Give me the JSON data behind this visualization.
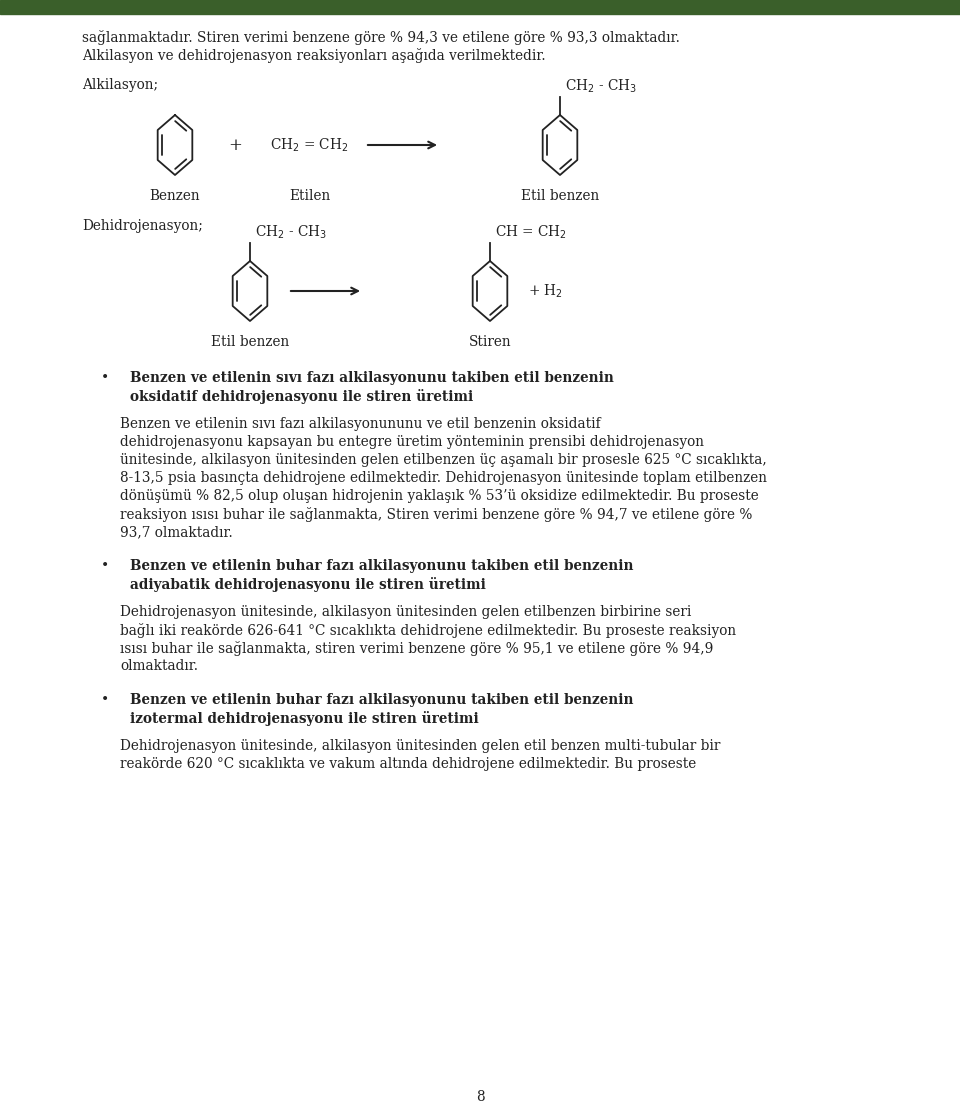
{
  "bg_color": "#ffffff",
  "page_number": "8",
  "text_color": "#222222",
  "green_bar_color": "#3a5f2a",
  "paragraph1": "sağlanmaktadır. Stiren verimi benzene göre % 94,3 ve etilene göre % 93,3 olmaktadır.",
  "paragraph1b": "Alkilasyon ve dehidrojenasyon reaksiyonları aşağıda verilmektedir.",
  "alkilasyon_label": "Alkilasyon;",
  "benzen_label": "Benzen",
  "etilen_label": "Etilen",
  "etilbenzen_label": "Etil benzen",
  "dehidro_label": "Dehidrojenasyon;",
  "etilbenzen2_label": "Etil benzen",
  "stiren_label": "Stiren",
  "plus_sign": "+",
  "bullet1_bold1": "Benzen ve etilenin sıvı fazı alkilasyonunu takiben etil benzenin",
  "bullet1_bold2": "oksidatif dehidrojenasyonu ile stiren üretimi",
  "bullet2_bold1": "Benzen ve etilenin buhar fazı alkilasyonunu takiben etil benzenin",
  "bullet2_bold2": "adiyabatik dehidrojenasyonu ile stiren üretimi",
  "bullet3_bold1": "Benzen ve etilenin buhar fazı alkilasyonunu takiben etil benzenin",
  "bullet3_bold2": "izotermal dehidrojenasyonu ile stiren üretimi",
  "body1_lines": [
    "Benzen ve etilenin sıvı fazı alkilasyonununu ve etil benzenin oksidatif",
    "dehidrojenasyonu kapsayan bu entegre üretim yönteminin prensibi dehidrojenasyon",
    "ünitesinde, alkilasyon ünitesinden gelen etilbenzen üç aşamalı bir prosesle 625 °C sıcaklıkta,",
    "8-13,5 psia basınçta dehidrojene edilmektedir. Dehidrojenasyon ünitesinde toplam etilbenzen",
    "dönüşümü % 82,5 olup oluşan hidrojenin yaklaşık % 53’ü oksidize edilmektedir. Bu proseste",
    "reaksiyon ısısı buhar ile sağlanmakta, Stiren verimi benzene göre % 94,7 ve etilene göre %",
    "93,7 olmaktadır."
  ],
  "body2_lines": [
    "Dehidrojenasyon ünitesinde, alkilasyon ünitesinden gelen etilbenzen birbirine seri",
    "bağlı iki reakörde 626-641 °C sıcaklıkta dehidrojene edilmektedir. Bu proseste reaksiyon",
    "ısısı buhar ile sağlanmakta, stiren verimi benzene göre % 95,1 ve etilene göre % 94,9",
    "olmaktadır."
  ],
  "body3_lines": [
    "Dehidrojenasyon ünitesinde, alkilasyon ünitesinden gelen etil benzen multi-tubular bir",
    "reakörde 620 °C sıcaklıkta ve vakum altında dehidrojene edilmektedir. Bu proseste"
  ]
}
